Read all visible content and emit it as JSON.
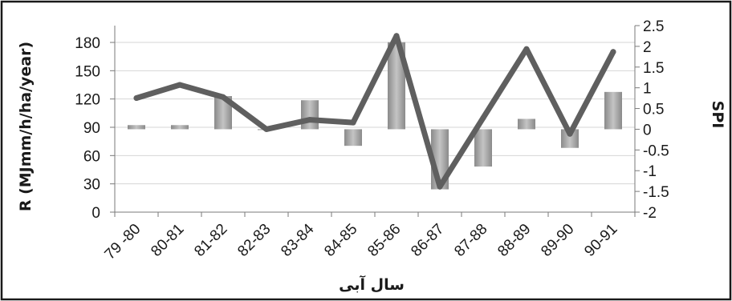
{
  "chart_data": {
    "type": "bar+line",
    "categories": [
      "79 -80",
      "80-81",
      "81-82",
      "82-83",
      "83-84",
      "84-85",
      "85-86",
      "86-87",
      "87-88",
      "88-89",
      "89-90",
      "90-91"
    ],
    "series": [
      {
        "type": "bar",
        "axis": "right",
        "values": [
          0.1,
          0.1,
          0.8,
          0.0,
          0.7,
          -0.4,
          2.1,
          -1.45,
          -0.9,
          0.25,
          -0.45,
          0.9
        ]
      },
      {
        "type": "line",
        "axis": "left",
        "values": [
          121,
          135,
          122,
          88,
          98,
          95,
          187,
          27,
          100,
          173,
          83,
          170
        ]
      }
    ],
    "ylabel": "R (MJmm/h/ha/year)",
    "y2label": "SPI",
    "xlabel": "سال آبی",
    "ylim": [
      0,
      200
    ],
    "yticks": [
      0,
      30,
      60,
      90,
      120,
      150,
      180
    ],
    "y2lim": [
      -2,
      2.5
    ],
    "y2ticks": [
      "2.5",
      "2",
      "1.5",
      "1",
      "0.5",
      "0",
      "-0.5",
      "-1",
      "-1.5",
      "-2"
    ],
    "grid": true,
    "colors": {
      "line": "#5f5f5f",
      "bar_dark": "#8a8a8a",
      "bar_light": "#d2d2d2"
    }
  }
}
